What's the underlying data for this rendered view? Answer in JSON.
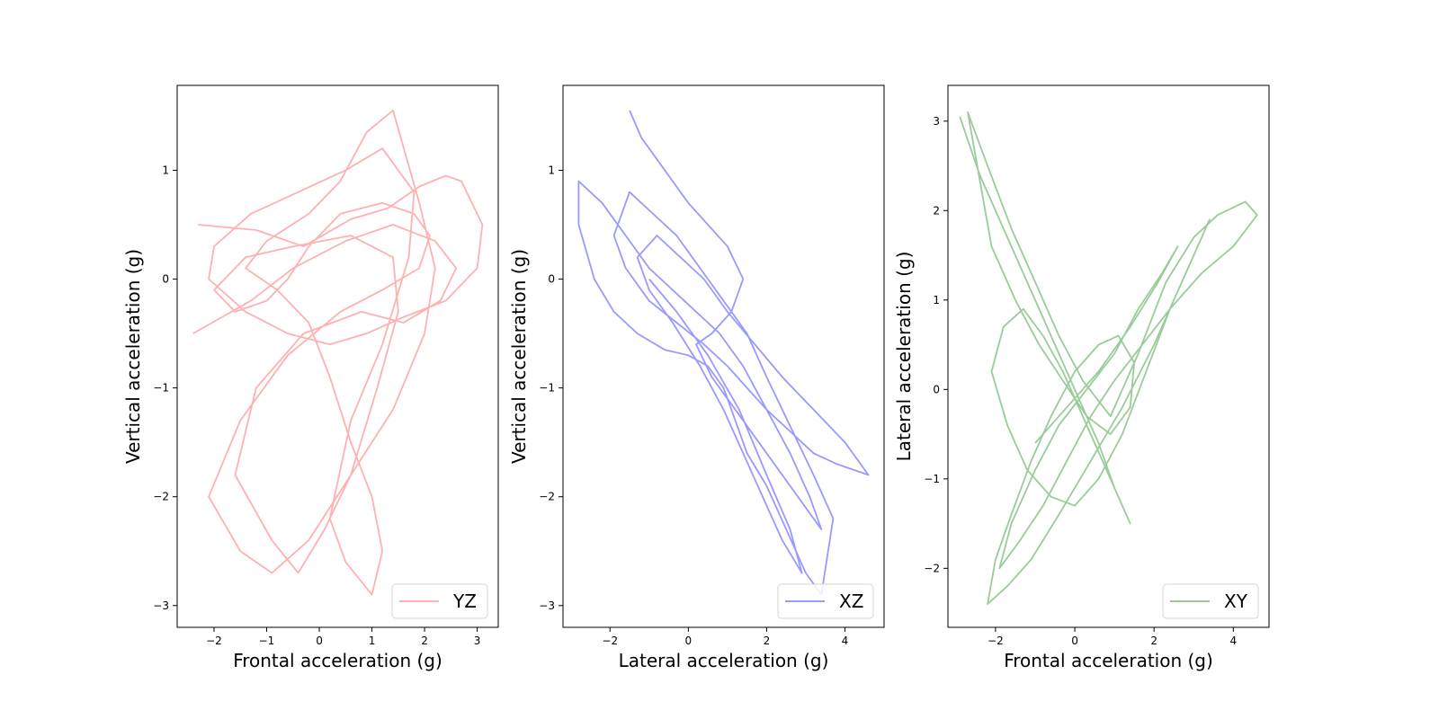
{
  "chart_data": [
    {
      "type": "line",
      "xlabel": "Frontal acceleration (g)",
      "ylabel": "Vertical acceleration  (g)",
      "xlim": [
        -2.7,
        3.4
      ],
      "ylim": [
        -3.2,
        1.78
      ],
      "xticks": [
        -2,
        -1,
        0,
        1,
        2,
        3
      ],
      "yticks": [
        -3,
        -2,
        -1,
        0,
        1
      ],
      "legend_loc": "lower-right",
      "grid": false,
      "series": [
        {
          "name": "YZ",
          "color": "#ffb0b0",
          "x": [
            -2.3,
            -1.2,
            -0.3,
            0.6,
            1.3,
            1.9,
            2.4,
            2.7,
            3.1,
            3.0,
            2.4,
            1.6,
            0.9,
            0.2,
            -0.6,
            -1.4,
            -2.1,
            -2.0,
            -1.3,
            -0.4,
            0.5,
            1.2,
            1.8,
            1.7,
            1.2,
            0.6,
            0.2,
            0.5,
            1.0,
            1.2,
            1.0,
            0.6,
            0.2,
            -0.2,
            -0.8,
            -1.4,
            -1.0,
            -0.2,
            0.4,
            0.9,
            1.4,
            1.9,
            2.2,
            2.0,
            1.4,
            0.6,
            -0.2,
            -0.9,
            -1.5,
            -2.1,
            -1.5,
            -0.6,
            0.4,
            1.2,
            1.9,
            2.1,
            1.8,
            1.2,
            0.4,
            -0.2,
            -0.6,
            -1.0,
            -1.6,
            -2.0,
            -1.4,
            -0.5,
            0.6,
            1.4,
            1.5,
            1.1,
            0.6,
            0.1,
            -0.4,
            -0.9,
            -1.6,
            -1.2,
            -0.3,
            0.8,
            1.6,
            2.3,
            2.6,
            2.2,
            1.4,
            0.5,
            -0.5,
            -1.3,
            -2.4
          ],
          "y": [
            0.5,
            0.45,
            0.3,
            0.55,
            0.65,
            0.85,
            0.95,
            0.9,
            0.5,
            0.1,
            -0.2,
            -0.35,
            -0.5,
            -0.6,
            -0.5,
            -0.3,
            0.0,
            0.3,
            0.6,
            0.8,
            1.0,
            1.2,
            0.8,
            0.2,
            -0.6,
            -1.3,
            -2.2,
            -2.6,
            -2.9,
            -2.5,
            -2.0,
            -1.5,
            -0.9,
            -0.4,
            -0.1,
            0.1,
            0.35,
            0.6,
            0.9,
            1.35,
            1.55,
            0.7,
            0.1,
            -0.5,
            -1.2,
            -1.8,
            -2.4,
            -2.7,
            -2.5,
            -2.0,
            -1.3,
            -0.7,
            -0.3,
            -0.1,
            0.1,
            0.4,
            0.6,
            0.7,
            0.6,
            0.3,
            0.0,
            -0.2,
            -0.3,
            -0.1,
            0.2,
            0.3,
            0.4,
            0.2,
            -0.3,
            -1.0,
            -1.8,
            -2.3,
            -2.7,
            -2.4,
            -1.8,
            -1.0,
            -0.5,
            -0.3,
            -0.4,
            -0.2,
            0.1,
            0.35,
            0.5,
            0.35,
            0.1,
            -0.2,
            -0.5
          ]
        }
      ]
    },
    {
      "type": "line",
      "xlabel": "Lateral acceleration (g)",
      "ylabel": "Vertical acceleration  (g)",
      "xlim": [
        -3.2,
        5.0
      ],
      "ylim": [
        -3.2,
        1.78
      ],
      "xticks": [
        -2,
        0,
        2,
        4
      ],
      "yticks": [
        -3,
        -2,
        -1,
        0,
        1
      ],
      "legend_loc": "lower-right",
      "grid": false,
      "series": [
        {
          "name": "XZ",
          "color": "#9999ff",
          "x": [
            -1.5,
            -1.2,
            -0.8,
            -0.4,
            0.0,
            0.5,
            1.0,
            1.4,
            1.1,
            0.6,
            0.2,
            0.6,
            1.2,
            1.8,
            2.4,
            3.0,
            3.4,
            3.1,
            2.6,
            2.0,
            1.4,
            0.8,
            0.2,
            -0.4,
            -1.0,
            -1.6,
            -2.2,
            -2.8,
            -2.8,
            -2.4,
            -1.9,
            -1.3,
            -0.6,
            0.0,
            0.5,
            0.9,
            1.2,
            1.5,
            2.0,
            2.5,
            3.0,
            3.4,
            3.7,
            3.2,
            2.8,
            2.4,
            2.0,
            1.5,
            0.9,
            0.3,
            -0.3,
            -0.9,
            -1.5,
            -1.9,
            -1.6,
            -1.0,
            -0.3,
            0.4,
            1.0,
            1.5,
            2.0,
            2.6,
            3.2,
            3.8,
            4.6,
            4.0,
            3.2,
            2.4,
            1.7,
            1.0,
            0.4,
            -0.2,
            -0.8,
            -1.3,
            -1.0,
            -0.4,
            0.3,
            0.9,
            1.4,
            1.9,
            2.4,
            2.9,
            2.6,
            2.0,
            1.3,
            0.5,
            -0.3,
            -1.0
          ],
          "y": [
            1.55,
            1.3,
            1.1,
            0.9,
            0.7,
            0.5,
            0.3,
            0.0,
            -0.3,
            -0.5,
            -0.6,
            -0.9,
            -1.2,
            -1.5,
            -1.8,
            -2.1,
            -2.3,
            -2.0,
            -1.6,
            -1.2,
            -0.8,
            -0.5,
            -0.3,
            -0.1,
            0.1,
            0.4,
            0.7,
            0.9,
            0.5,
            0.0,
            -0.3,
            -0.5,
            -0.65,
            -0.7,
            -0.8,
            -1.0,
            -1.3,
            -1.6,
            -1.9,
            -2.3,
            -2.7,
            -2.9,
            -2.2,
            -1.8,
            -1.5,
            -1.2,
            -0.9,
            -0.5,
            -0.2,
            0.1,
            0.4,
            0.6,
            0.8,
            0.4,
            0.1,
            -0.2,
            -0.4,
            -0.6,
            -0.8,
            -1.0,
            -1.2,
            -1.4,
            -1.6,
            -1.7,
            -1.8,
            -1.5,
            -1.2,
            -0.9,
            -0.6,
            -0.3,
            0.0,
            0.2,
            0.4,
            0.2,
            -0.1,
            -0.4,
            -0.8,
            -1.2,
            -1.6,
            -2.0,
            -2.4,
            -2.7,
            -2.3,
            -1.8,
            -1.2,
            -0.7,
            -0.3,
            0.0
          ]
        }
      ]
    },
    {
      "type": "line",
      "xlabel": "Frontal acceleration  (g)",
      "ylabel": "Lateral acceleration (g)",
      "xlim": [
        -3.2,
        4.9
      ],
      "ylim": [
        -2.66,
        3.4
      ],
      "xticks": [
        -2,
        0,
        2,
        4
      ],
      "yticks": [
        -2,
        -1,
        0,
        1,
        2,
        3
      ],
      "legend_loc": "lower-right",
      "grid": false,
      "series": [
        {
          "name": "XY",
          "color": "#99cc99",
          "x": [
            -2.9,
            -2.4,
            -1.9,
            -1.4,
            -0.9,
            -0.4,
            0.1,
            0.6,
            1.0,
            1.4,
            1.2,
            0.7,
            0.2,
            -0.3,
            -0.8,
            -1.3,
            -1.8,
            -2.1,
            -1.7,
            -1.2,
            -0.6,
            0.0,
            0.6,
            1.2,
            1.8,
            2.4,
            3.0,
            3.4,
            3.1,
            2.6,
            2.0,
            1.2,
            0.4,
            -0.4,
            -1.1,
            -1.7,
            -2.2,
            -2.0,
            -1.6,
            -1.1,
            -0.6,
            0.0,
            0.6,
            1.1,
            1.5,
            1.4,
            0.9,
            0.3,
            -0.3,
            -0.9,
            -1.5,
            -2.1,
            -2.7,
            -2.2,
            -1.6,
            -1.0,
            -0.4,
            0.2,
            0.9,
            1.6,
            2.3,
            3.0,
            3.6,
            4.3,
            4.6,
            4.0,
            3.2,
            2.4,
            1.7,
            1.0,
            0.4,
            -0.2,
            -0.8,
            -1.4,
            -1.9,
            -1.6,
            -1.0,
            -0.4,
            0.3,
            1.0,
            1.6,
            2.2,
            2.6,
            2.1,
            1.4,
            0.6,
            -0.2,
            -1.0
          ],
          "y": [
            3.05,
            2.4,
            1.9,
            1.4,
            0.9,
            0.4,
            -0.1,
            -0.6,
            -1.1,
            -1.5,
            -1.3,
            -0.8,
            -0.3,
            0.2,
            0.6,
            0.9,
            0.7,
            0.2,
            -0.4,
            -0.9,
            -1.2,
            -1.3,
            -1.0,
            -0.5,
            0.2,
            0.9,
            1.5,
            1.9,
            1.6,
            1.1,
            0.5,
            -0.2,
            -0.8,
            -1.4,
            -1.9,
            -2.2,
            -2.4,
            -1.9,
            -1.4,
            -0.8,
            -0.3,
            0.2,
            0.5,
            0.6,
            0.3,
            -0.2,
            -0.5,
            -0.3,
            0.1,
            0.5,
            1.0,
            1.6,
            3.1,
            2.5,
            1.8,
            1.2,
            0.6,
            0.1,
            -0.3,
            0.4,
            1.2,
            1.7,
            1.95,
            2.1,
            1.95,
            1.6,
            1.3,
            0.9,
            0.5,
            0.1,
            -0.3,
            -0.8,
            -1.3,
            -1.7,
            -2.0,
            -1.5,
            -0.9,
            -0.4,
            0.0,
            0.4,
            0.9,
            1.3,
            1.6,
            1.2,
            0.7,
            0.2,
            -0.2,
            -0.6
          ]
        }
      ]
    }
  ]
}
